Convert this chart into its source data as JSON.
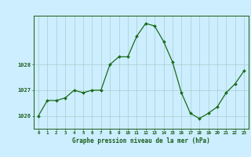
{
  "x": [
    0,
    1,
    2,
    3,
    4,
    5,
    6,
    7,
    8,
    9,
    10,
    11,
    12,
    13,
    14,
    15,
    16,
    17,
    18,
    19,
    20,
    21,
    22,
    23
  ],
  "y": [
    1026.0,
    1026.6,
    1026.6,
    1026.7,
    1027.0,
    1026.9,
    1027.0,
    1027.0,
    1028.0,
    1028.3,
    1028.3,
    1029.1,
    1029.6,
    1029.5,
    1028.9,
    1028.1,
    1026.9,
    1026.1,
    1025.9,
    1026.1,
    1026.35,
    1026.9,
    1027.25,
    1027.75
  ],
  "line_color": "#1a6b1a",
  "marker_color": "#1a6b1a",
  "bg_color": "#cceeff",
  "grid_color": "#aacccc",
  "text_color": "#1a5c1a",
  "xlabel": "Graphe pression niveau de la mer (hPa)",
  "yticks": [
    1026,
    1027,
    1028
  ],
  "ylim": [
    1025.5,
    1029.9
  ],
  "xlim": [
    -0.5,
    23.5
  ],
  "xticks": [
    0,
    1,
    2,
    3,
    4,
    5,
    6,
    7,
    8,
    9,
    10,
    11,
    12,
    13,
    14,
    15,
    16,
    17,
    18,
    19,
    20,
    21,
    22,
    23
  ]
}
